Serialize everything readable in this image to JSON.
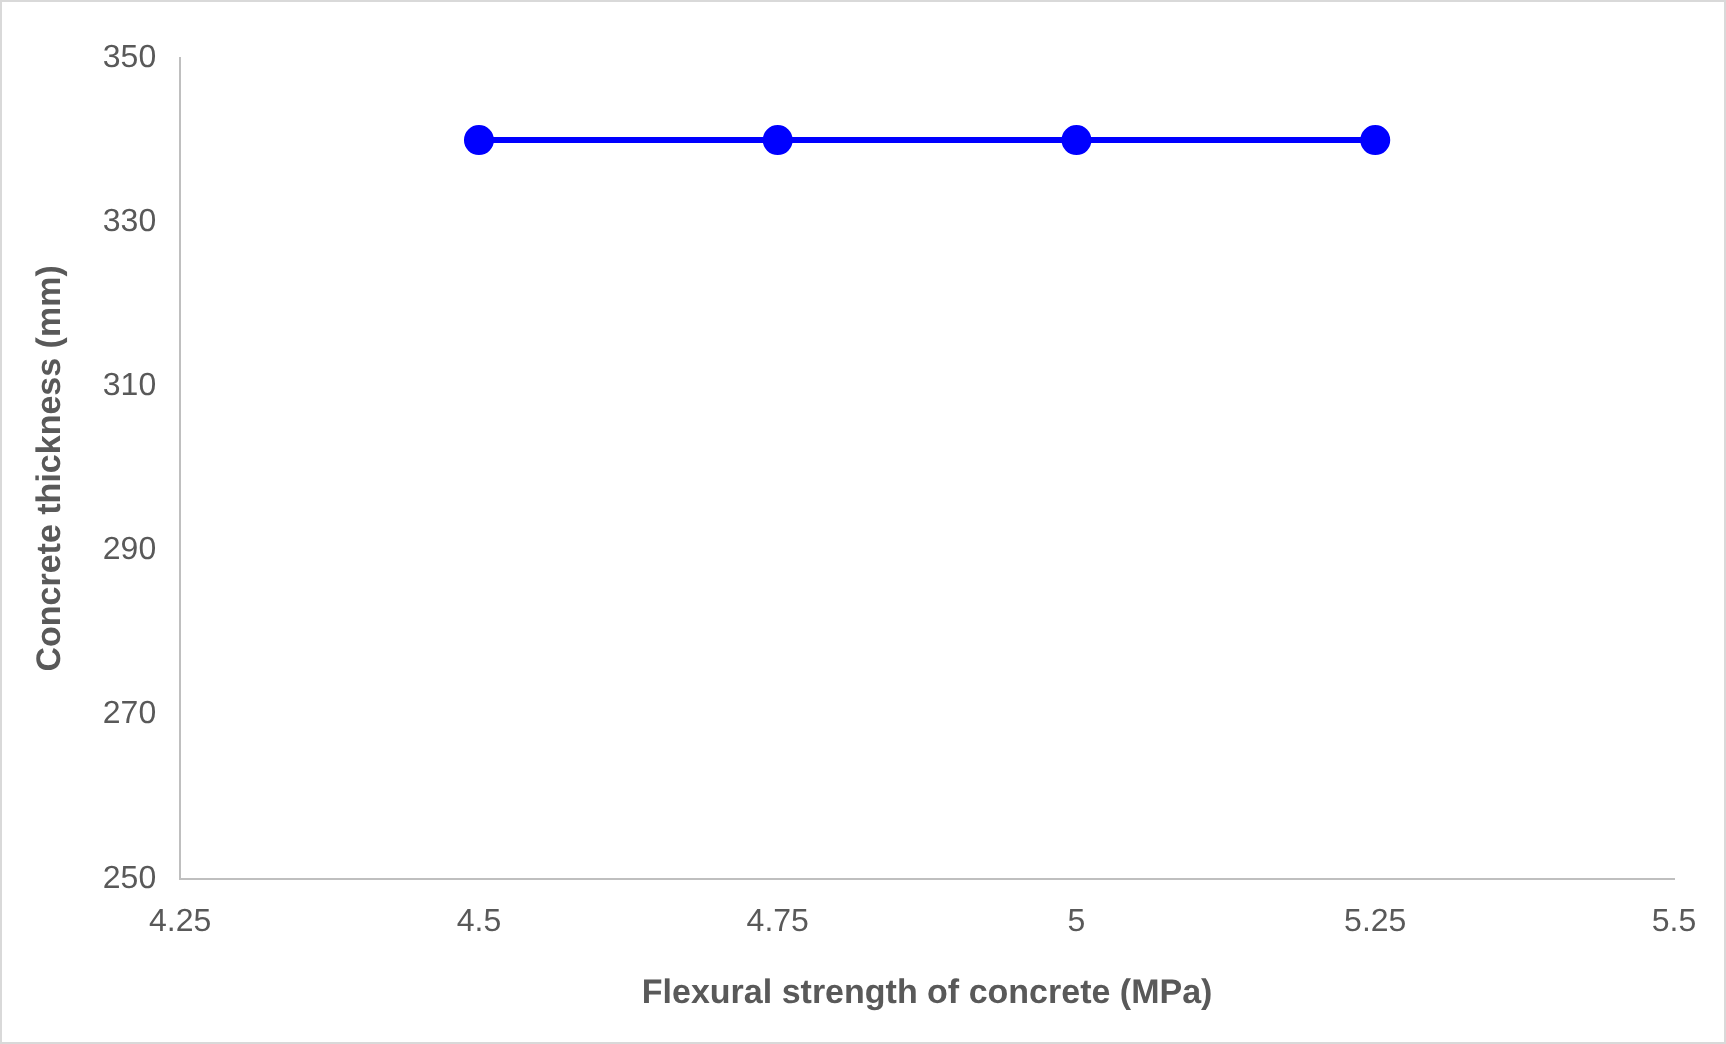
{
  "chart_data": {
    "type": "line",
    "xlabel": "Flexural strength of concrete (MPa)",
    "ylabel": "Concrete thickness (mm)",
    "x": [
      4.5,
      4.75,
      5,
      5.25
    ],
    "series": [
      {
        "color": "#0000ff",
        "values": [
          340,
          340,
          340,
          340
        ]
      }
    ],
    "xlim": [
      4.25,
      5.5
    ],
    "xticks": [
      4.25,
      4.5,
      4.75,
      5,
      5.25,
      5.5
    ],
    "ylim": [
      250,
      350
    ],
    "yticks": [
      250,
      270,
      290,
      310,
      330,
      350
    ],
    "grid": false,
    "legend": false,
    "marker": "circle",
    "line_style": "solid"
  }
}
